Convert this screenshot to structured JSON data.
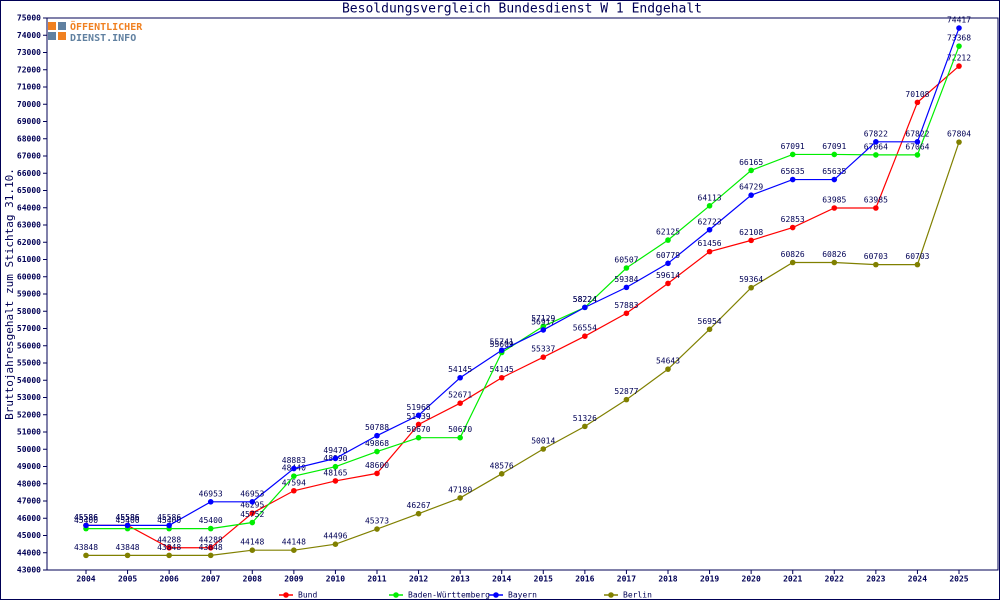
{
  "chart_data": {
    "type": "line",
    "title": "Besoldungsvergleich Bundesdienst W 1 Endgehalt",
    "y_label": "Bruttojahresgehalt zum Stichtag 31.10.",
    "logo": [
      "ÖFFENTLICHER",
      "DIENST.INFO"
    ],
    "categories": [
      "2004",
      "2005",
      "2006",
      "2007",
      "2008",
      "2009",
      "2010",
      "2011",
      "2012",
      "2013",
      "2014",
      "2015",
      "2016",
      "2017",
      "2018",
      "2019",
      "2020",
      "2021",
      "2022",
      "2023",
      "2024",
      "2025"
    ],
    "series": [
      {
        "name": "Bund",
        "color": "#ff0000",
        "values": [
          45586,
          45586,
          44288,
          44288,
          46295,
          47594,
          48165,
          48600,
          51439,
          52671,
          54145,
          55337,
          56554,
          57883,
          59614,
          61456,
          62108,
          62853,
          63985,
          63985,
          70108,
          72212
        ]
      },
      {
        "name": "Baden-Württemberg",
        "color": "#00ee00",
        "values": [
          45400,
          45400,
          45400,
          45400,
          45752,
          48440,
          48990,
          49868,
          50670,
          50670,
          55609,
          57129,
          58224,
          60507,
          62125,
          64113,
          66165,
          67091,
          67091,
          67064,
          67064,
          73368
        ]
      },
      {
        "name": "Bayern",
        "color": "#0000ff",
        "values": [
          45586,
          45586,
          45586,
          46953,
          46953,
          48883,
          49470,
          50788,
          51968,
          54145,
          55741,
          56917,
          58224,
          59384,
          60779,
          62723,
          64729,
          65635,
          65635,
          67822,
          67822,
          74417
        ]
      },
      {
        "name": "Berlin",
        "color": "#808000",
        "values": [
          43848,
          43848,
          43848,
          43848,
          44148,
          44148,
          44496,
          45373,
          46267,
          47180,
          48576,
          50014,
          51326,
          52877,
          54643,
          56954,
          59364,
          60826,
          60826,
          60703,
          60703,
          67804
        ]
      }
    ],
    "ylim": [
      43000,
      75000
    ],
    "yticks": [
      43000,
      44000,
      45000,
      46000,
      47000,
      48000,
      49000,
      50000,
      51000,
      52000,
      53000,
      54000,
      55000,
      56000,
      57000,
      58000,
      59000,
      60000,
      61000,
      62000,
      63000,
      64000,
      65000,
      66000,
      67000,
      68000,
      69000,
      70000,
      71000,
      72000,
      73000,
      74000,
      75000
    ],
    "grid": false,
    "legend": "bottom"
  }
}
